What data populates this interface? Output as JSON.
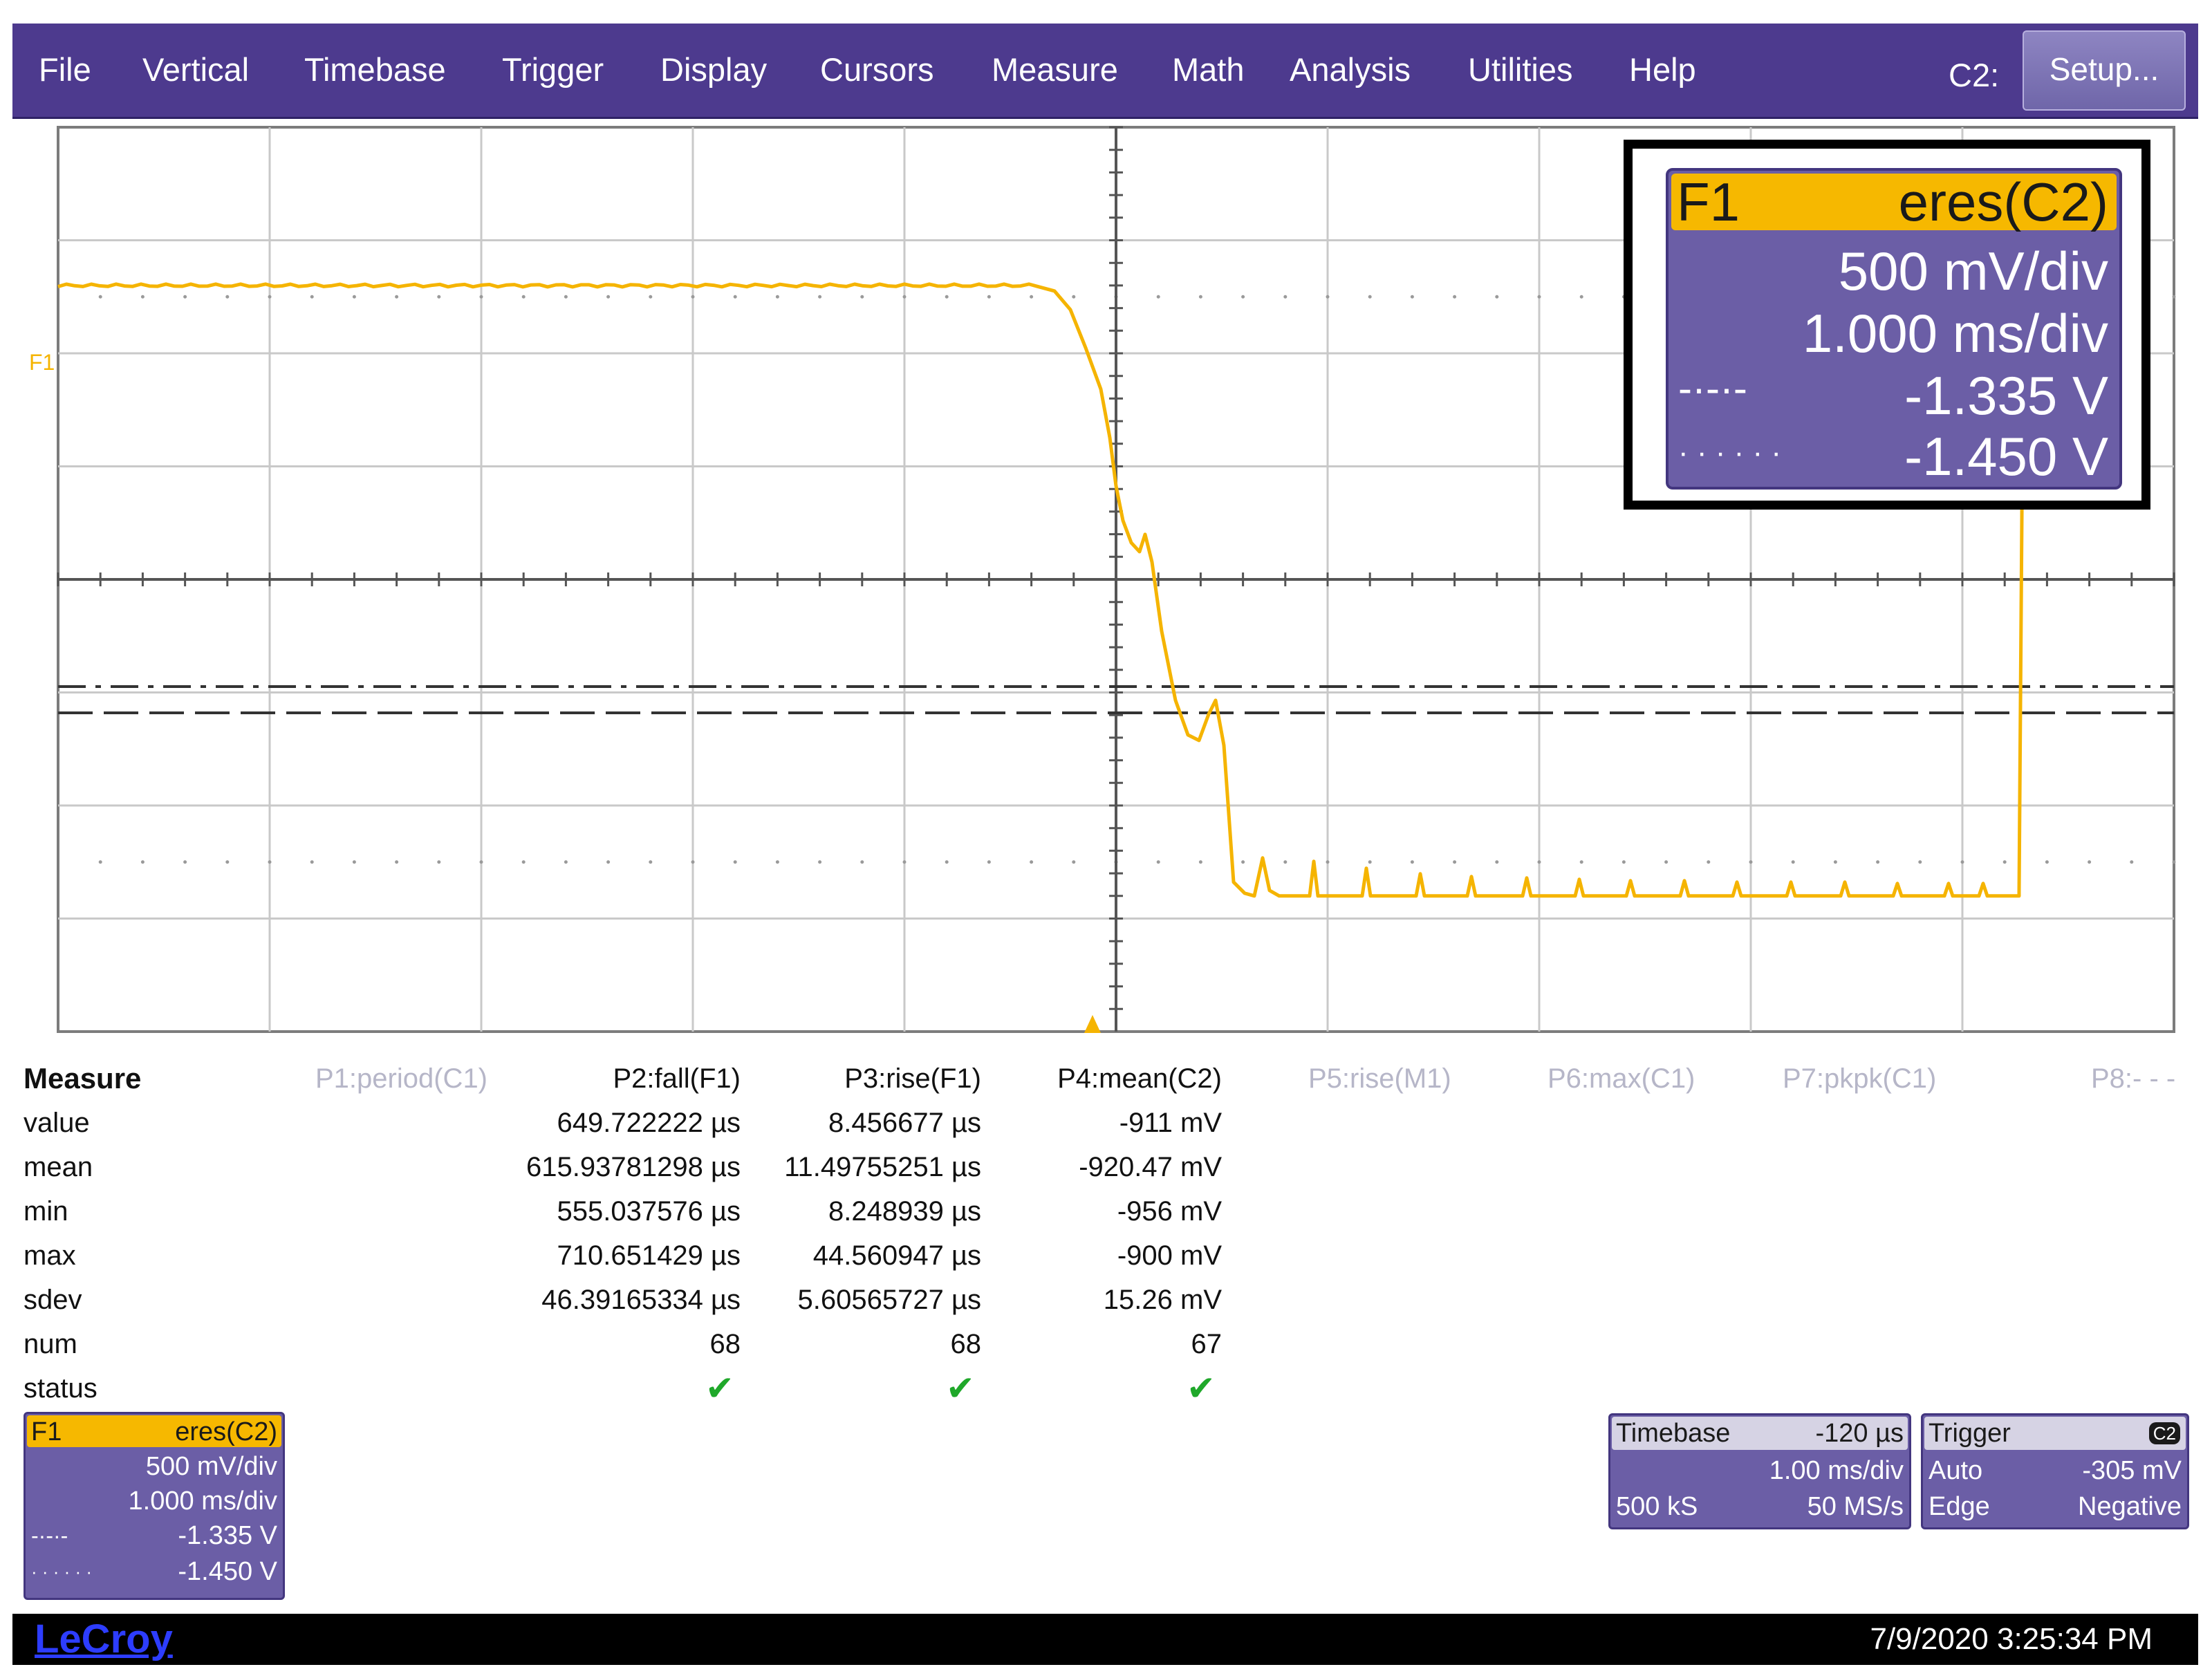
{
  "menu": {
    "items": [
      "File",
      "Vertical",
      "Timebase",
      "Trigger",
      "Display",
      "Cursors",
      "Measure",
      "Math",
      "Analysis",
      "Utilities",
      "Help"
    ],
    "channel_label": "C2:",
    "setup_label": "Setup..."
  },
  "trace": {
    "label": "F1",
    "color": "#f5b400",
    "high_level": -0.2,
    "low_level": -2.9
  },
  "callout": {
    "trace": "F1",
    "source": "eres(C2)",
    "vdiv": "500 mV/div",
    "hdiv": "1.000 ms/div",
    "cursor1_symbol": "-·-·-",
    "cursor1_value": "-1.335 V",
    "cursor2_symbol": "· · · · · ·",
    "cursor2_value": "-1.450 V"
  },
  "measure": {
    "title": "Measure",
    "params": [
      "P1:period(C1)",
      "P2:fall(F1)",
      "P3:rise(F1)",
      "P4:mean(C2)",
      "P5:rise(M1)",
      "P6:max(C1)",
      "P7:pkpk(C1)",
      "P8:- - -"
    ],
    "rows": [
      {
        "label": "value",
        "p2": "649.722222 µs",
        "p3": "8.456677 µs",
        "p4": "-911 mV"
      },
      {
        "label": "mean",
        "p2": "615.93781298 µs",
        "p3": "11.49755251 µs",
        "p4": "-920.47 mV"
      },
      {
        "label": "min",
        "p2": "555.037576 µs",
        "p3": "8.248939 µs",
        "p4": "-956 mV"
      },
      {
        "label": "max",
        "p2": "710.651429 µs",
        "p3": "44.560947 µs",
        "p4": "-900 mV"
      },
      {
        "label": "sdev",
        "p2": "46.39165334 µs",
        "p3": "5.60565727 µs",
        "p4": "15.26 mV"
      },
      {
        "label": "num",
        "p2": "68",
        "p3": "68",
        "p4": "67"
      }
    ],
    "status_label": "status",
    "status_mark": "✔"
  },
  "f1_box": {
    "trace": "F1",
    "source": "eres(C2)",
    "vdiv": "500 mV/div",
    "hdiv": "1.000 ms/div",
    "cursor1_symbol": "-·-·-",
    "cursor1_value": "-1.335 V",
    "cursor2_symbol": "· · · · · ·",
    "cursor2_value": "-1.450 V"
  },
  "timebase": {
    "label": "Timebase",
    "delay": "-120 µs",
    "hdiv": "1.00 ms/div",
    "samples": "500 kS",
    "rate": "50 MS/s"
  },
  "trigger": {
    "label": "Trigger",
    "channel": "C2",
    "mode": "Auto",
    "level": "-305 mV",
    "type": "Edge",
    "slope": "Negative"
  },
  "status_bar": {
    "brand": "LeCroy",
    "timestamp": "7/9/2020 3:25:34 PM"
  }
}
